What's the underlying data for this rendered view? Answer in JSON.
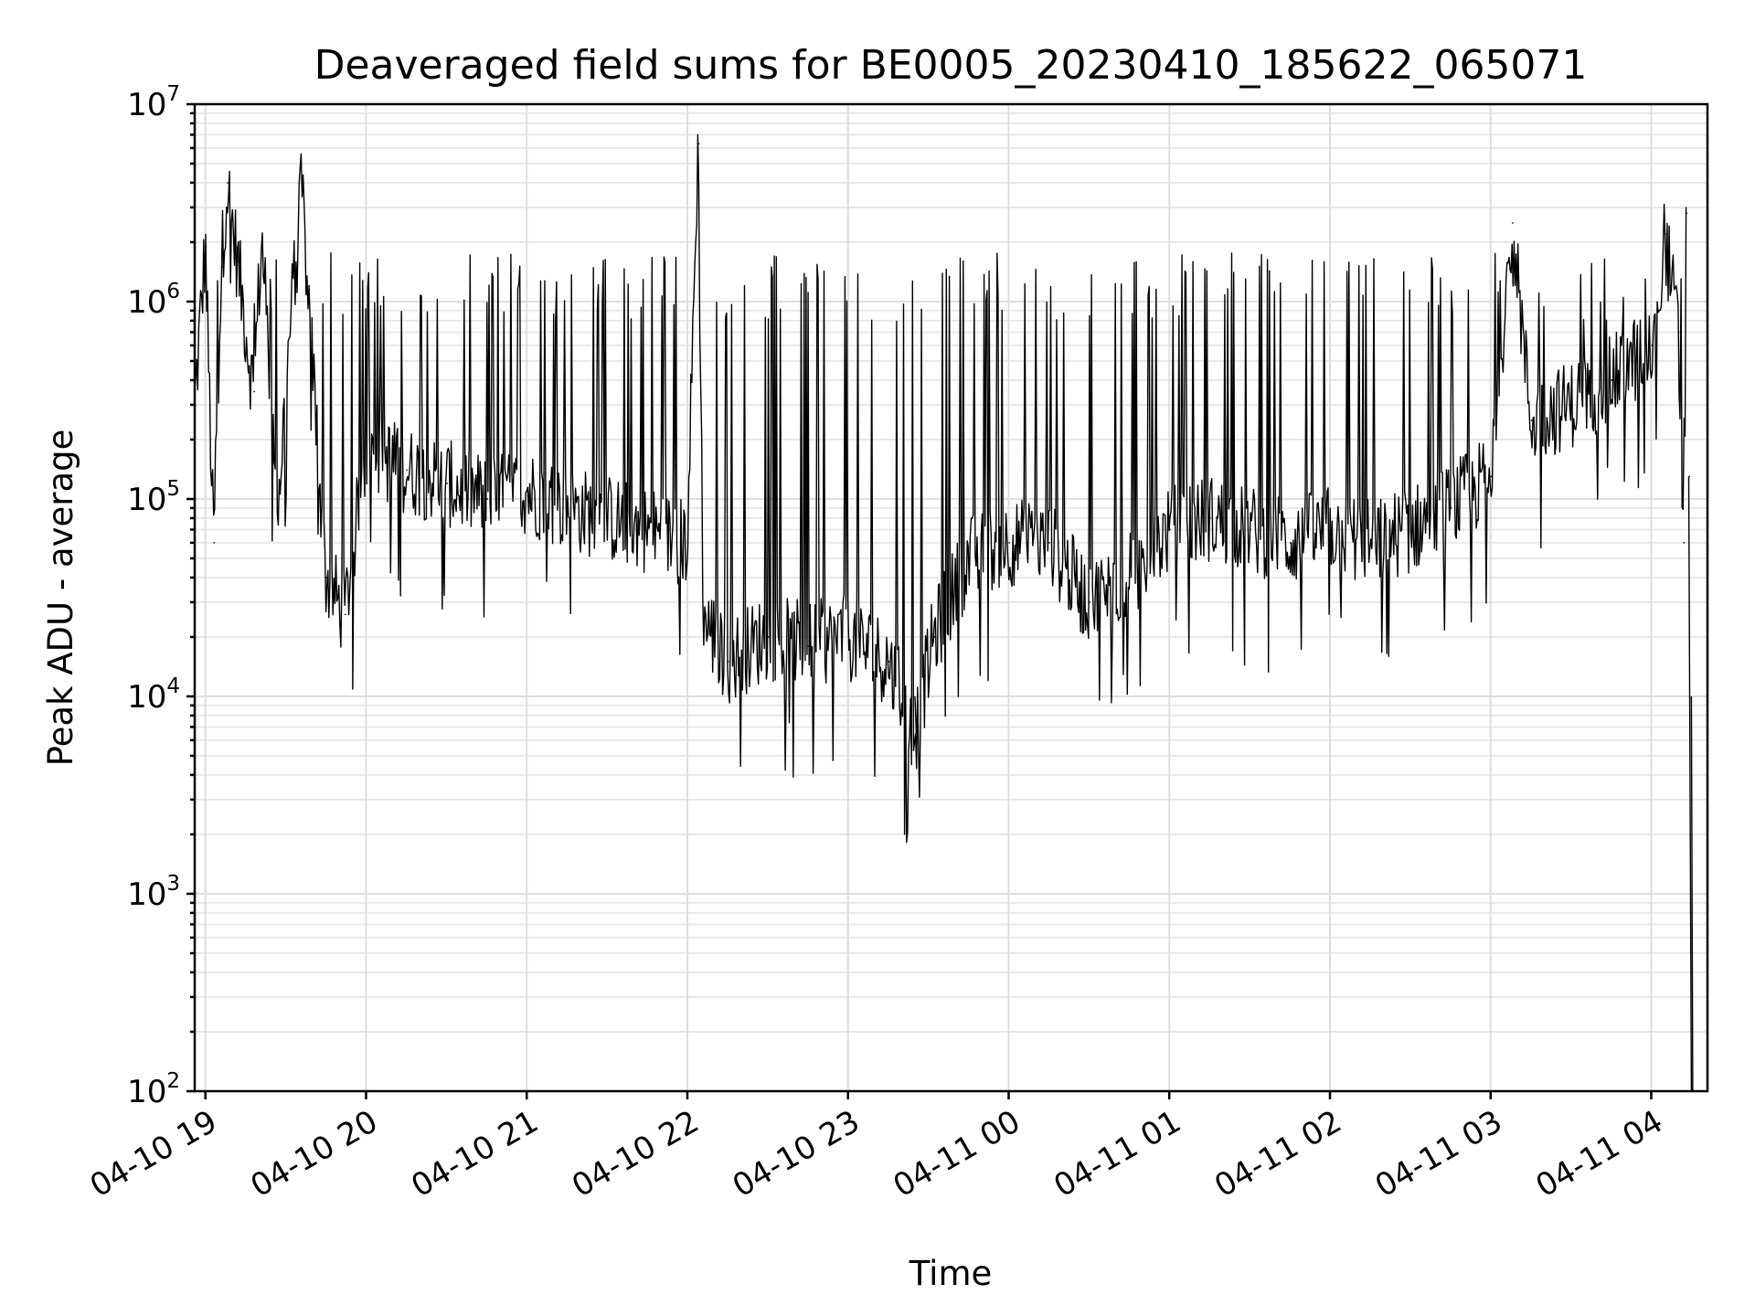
{
  "chart_data": {
    "type": "line",
    "title": "Deaveraged field sums for BE0005_20230410_185622_065071",
    "xlabel": "Time",
    "ylabel": "Peak ADU - average",
    "yscale": "log",
    "ylim": [
      100,
      10000000
    ],
    "xlim": [
      "2023-04-10 18:56",
      "2023-04-11 04:21"
    ],
    "grid": true,
    "x_ticks": [
      "04-10 19",
      "04-10 20",
      "04-10 21",
      "04-10 22",
      "04-10 23",
      "04-11 00",
      "04-11 01",
      "04-11 02",
      "04-11 03",
      "04-11 04"
    ],
    "y_ticks": [
      "10^2",
      "10^3",
      "10^4",
      "10^5",
      "10^6",
      "10^7"
    ],
    "series": [
      {
        "color": "#000000",
        "points": [
          [
            "2023-04-10 18:56",
            300000
          ],
          [
            "2023-04-10 19:00",
            1900000
          ],
          [
            "2023-04-10 19:03",
            60000
          ],
          [
            "2023-04-10 19:06",
            1500000
          ],
          [
            "2023-04-10 19:08",
            4000000
          ],
          [
            "2023-04-10 19:12",
            1600000
          ],
          [
            "2023-04-10 19:18",
            350000
          ],
          [
            "2023-04-10 19:21",
            2100000
          ],
          [
            "2023-04-10 19:27",
            90000
          ],
          [
            "2023-04-10 19:33",
            1300000
          ],
          [
            "2023-04-10 19:36",
            3700000
          ],
          [
            "2023-04-10 19:45",
            40000
          ],
          [
            "2023-04-10 19:52",
            26000
          ],
          [
            "2023-04-10 20:00",
            180000
          ],
          [
            "2023-04-10 20:15",
            140000
          ],
          [
            "2023-04-10 20:30",
            120000
          ],
          [
            "2023-04-10 20:45",
            100000
          ],
          [
            "2023-04-10 21:00",
            110000
          ],
          [
            "2023-04-10 21:15",
            90000
          ],
          [
            "2023-04-10 21:30",
            80000
          ],
          [
            "2023-04-10 21:45",
            70000
          ],
          [
            "2023-04-10 22:00",
            60000
          ],
          [
            "2023-04-10 22:04",
            6300000
          ],
          [
            "2023-04-10 22:06",
            25000
          ],
          [
            "2023-04-10 22:15",
            15000
          ],
          [
            "2023-04-10 22:30",
            20000
          ],
          [
            "2023-04-10 22:45",
            18000
          ],
          [
            "2023-04-10 23:00",
            20000
          ],
          [
            "2023-04-10 23:15",
            15000
          ],
          [
            "2023-04-10 23:25",
            6500
          ],
          [
            "2023-04-10 23:32",
            20000
          ],
          [
            "2023-04-10 23:45",
            50000
          ],
          [
            "2023-04-11 00:00",
            60000
          ],
          [
            "2023-04-11 00:15",
            60000
          ],
          [
            "2023-04-11 00:30",
            30000
          ],
          [
            "2023-04-11 00:45",
            40000
          ],
          [
            "2023-04-11 01:00",
            70000
          ],
          [
            "2023-04-11 01:15",
            80000
          ],
          [
            "2023-04-11 01:30",
            70000
          ],
          [
            "2023-04-11 01:45",
            60000
          ],
          [
            "2023-04-11 02:00",
            70000
          ],
          [
            "2023-04-11 02:15",
            60000
          ],
          [
            "2023-04-11 02:30",
            70000
          ],
          [
            "2023-04-11 02:45",
            90000
          ],
          [
            "2023-04-11 03:00",
            130000
          ],
          [
            "2023-04-11 03:08",
            2500000
          ],
          [
            "2023-04-11 03:15",
            250000
          ],
          [
            "2023-04-11 03:30",
            300000
          ],
          [
            "2023-04-11 03:45",
            400000
          ],
          [
            "2023-04-11 04:00",
            600000
          ],
          [
            "2023-04-11 04:05",
            2200000
          ],
          [
            "2023-04-11 04:10",
            700000
          ],
          [
            "2023-04-11 04:12",
            60000
          ],
          [
            "2023-04-11 04:13",
            2800000
          ],
          [
            "2023-04-11 04:14",
            130000
          ],
          [
            "2023-04-11 04:15",
            100
          ]
        ]
      }
    ]
  }
}
